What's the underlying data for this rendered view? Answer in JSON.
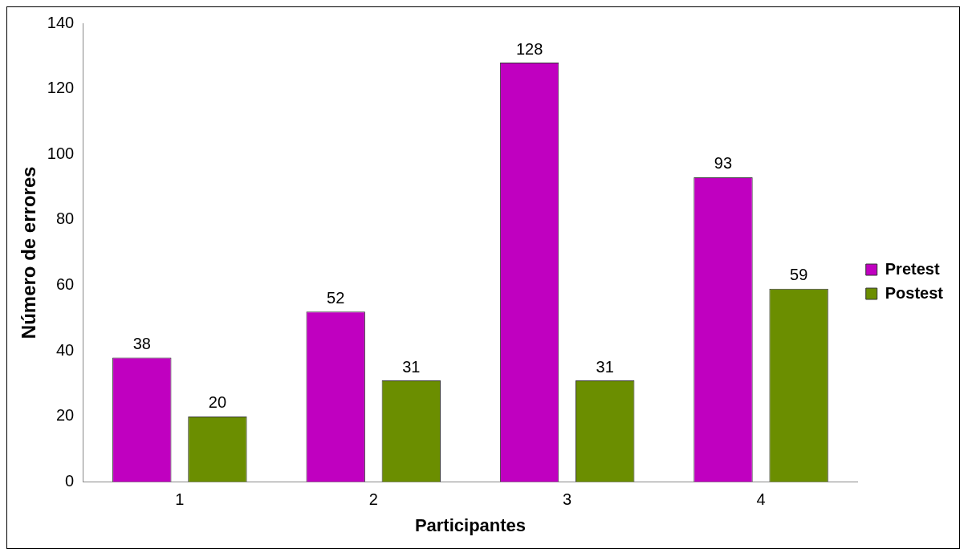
{
  "chart_data": {
    "type": "bar",
    "xlabel": "Participantes",
    "ylabel": "Número de errores",
    "categories": [
      "1",
      "2",
      "3",
      "4"
    ],
    "series": [
      {
        "name": "Pretest",
        "color": "#c000c0",
        "values": [
          38,
          52,
          128,
          93
        ]
      },
      {
        "name": "Postest",
        "color": "#6b8e00",
        "values": [
          20,
          31,
          31,
          59
        ]
      }
    ],
    "ylim": [
      0,
      140
    ],
    "yticks": [
      0,
      20,
      40,
      60,
      80,
      100,
      120,
      140
    ],
    "data_labels": true,
    "legend": "right",
    "grid": false
  }
}
